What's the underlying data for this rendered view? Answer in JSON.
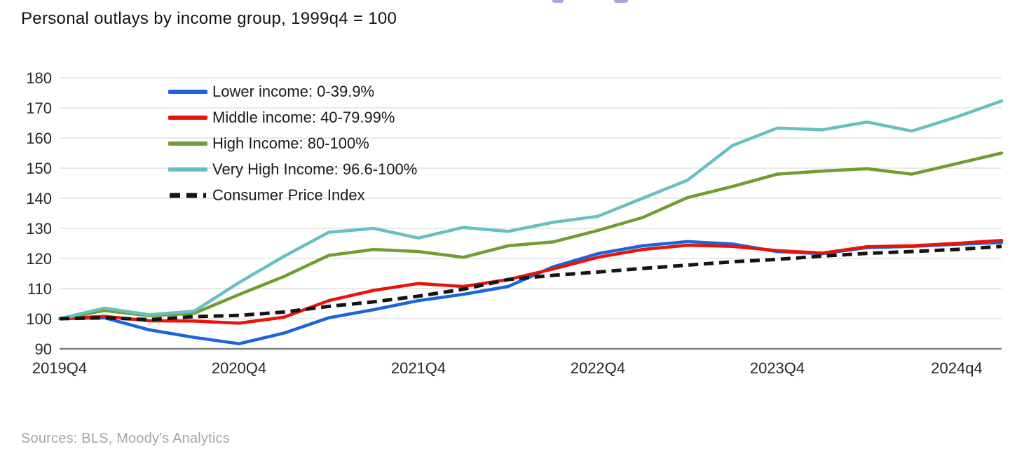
{
  "page": {
    "subtitle": "Personal outlays by income group, 1999q4 = 100",
    "sources": "Sources: BLS, Moody's Analytics"
  },
  "colors": {
    "lower": "#1b64db",
    "middle": "#e81309",
    "high": "#6f9d2f",
    "very_high": "#68bfc1",
    "cpi": "#141414",
    "grid": "#dcdcdc",
    "axis": "#808080",
    "tick_text": "#262626",
    "sources_text": "#a5a5a5"
  },
  "legend": [
    {
      "id": "lower",
      "label": "Lower income: 0-39.9%",
      "color": "#1b64db",
      "dashed": false
    },
    {
      "id": "middle",
      "label": "Middle income: 40-79.99%",
      "color": "#e81309",
      "dashed": false
    },
    {
      "id": "high",
      "label": "High Income: 80-100%",
      "color": "#6f9d2f",
      "dashed": false
    },
    {
      "id": "very_high",
      "label": "Very High Income: 96.6-100%",
      "color": "#68bfc1",
      "dashed": false
    },
    {
      "id": "cpi",
      "label": "Consumer Price Index",
      "color": "#141414",
      "dashed": true
    }
  ],
  "chart_data": {
    "type": "line",
    "title": "Personal outlays by income group, 1999q4 = 100",
    "xlabel": "",
    "ylabel": "",
    "ylim": [
      90,
      180
    ],
    "y_ticks": [
      90,
      100,
      110,
      120,
      130,
      140,
      150,
      160,
      170,
      180
    ],
    "grid": "horizontal",
    "legend_position": "top-left-inside",
    "x": [
      "2019Q4",
      "2020Q1",
      "2020Q2",
      "2020Q3",
      "2020Q4",
      "2021Q1",
      "2021Q2",
      "2021Q3",
      "2021Q4",
      "2022Q1",
      "2022Q2",
      "2022Q3",
      "2022Q4",
      "2023Q1",
      "2023Q2",
      "2023Q3",
      "2023Q4",
      "2024Q1",
      "2024Q2",
      "2024Q3",
      "2024Q4",
      "2025Q1"
    ],
    "x_tick_indices": [
      0,
      4,
      8,
      12,
      16,
      20
    ],
    "x_tick_labels": [
      "2019Q4",
      "2020Q4",
      "2021Q4",
      "2022Q4",
      "2023Q4",
      "2024q4"
    ],
    "series": [
      {
        "id": "lower",
        "name": "Lower income: 0-39.9%",
        "color": "#1b64db",
        "style": "solid",
        "values": [
          100,
          100.3,
          96.3,
          93.8,
          91.7,
          95.2,
          100.3,
          103,
          106,
          108.1,
          110.7,
          117.2,
          121.6,
          124.2,
          125.6,
          124.8,
          122.3,
          121.6,
          123.6,
          124,
          124.7,
          125.3
        ]
      },
      {
        "id": "middle",
        "name": "Middle income: 40-79.99%",
        "color": "#e81309",
        "style": "solid",
        "values": [
          100,
          100.8,
          99.3,
          99.2,
          98.5,
          100.5,
          106,
          109.4,
          111.7,
          110.7,
          113,
          116.5,
          120.4,
          123,
          124.4,
          124,
          122.6,
          121.8,
          123.9,
          124.2,
          125,
          126
        ]
      },
      {
        "id": "high",
        "name": "High Income: 80-100%",
        "color": "#6f9d2f",
        "style": "solid",
        "values": [
          100,
          102.7,
          101,
          101.8,
          108,
          114,
          121,
          123,
          122.3,
          120.4,
          124.2,
          125.5,
          129.3,
          133.6,
          140.2,
          143.9,
          148,
          149,
          149.8,
          148,
          151.5,
          155
        ]
      },
      {
        "id": "very_high",
        "name": "Very High Income: 96.6-100%",
        "color": "#68bfc1",
        "style": "solid",
        "values": [
          100,
          103.5,
          101.3,
          102.5,
          112,
          120.7,
          128.7,
          130,
          126.8,
          130.3,
          129,
          132,
          134,
          140,
          146,
          157.5,
          163.3,
          162.7,
          165.3,
          162.3,
          167,
          172.3
        ]
      },
      {
        "id": "cpi",
        "name": "Consumer Price Index",
        "color": "#141414",
        "style": "dashed",
        "values": [
          100,
          100.3,
          99.7,
          100.7,
          101.1,
          102.2,
          104.1,
          105.6,
          107.5,
          109.8,
          113,
          114.4,
          115.5,
          116.7,
          117.8,
          118.9,
          119.7,
          120.8,
          121.7,
          122.3,
          123,
          124
        ]
      }
    ]
  }
}
